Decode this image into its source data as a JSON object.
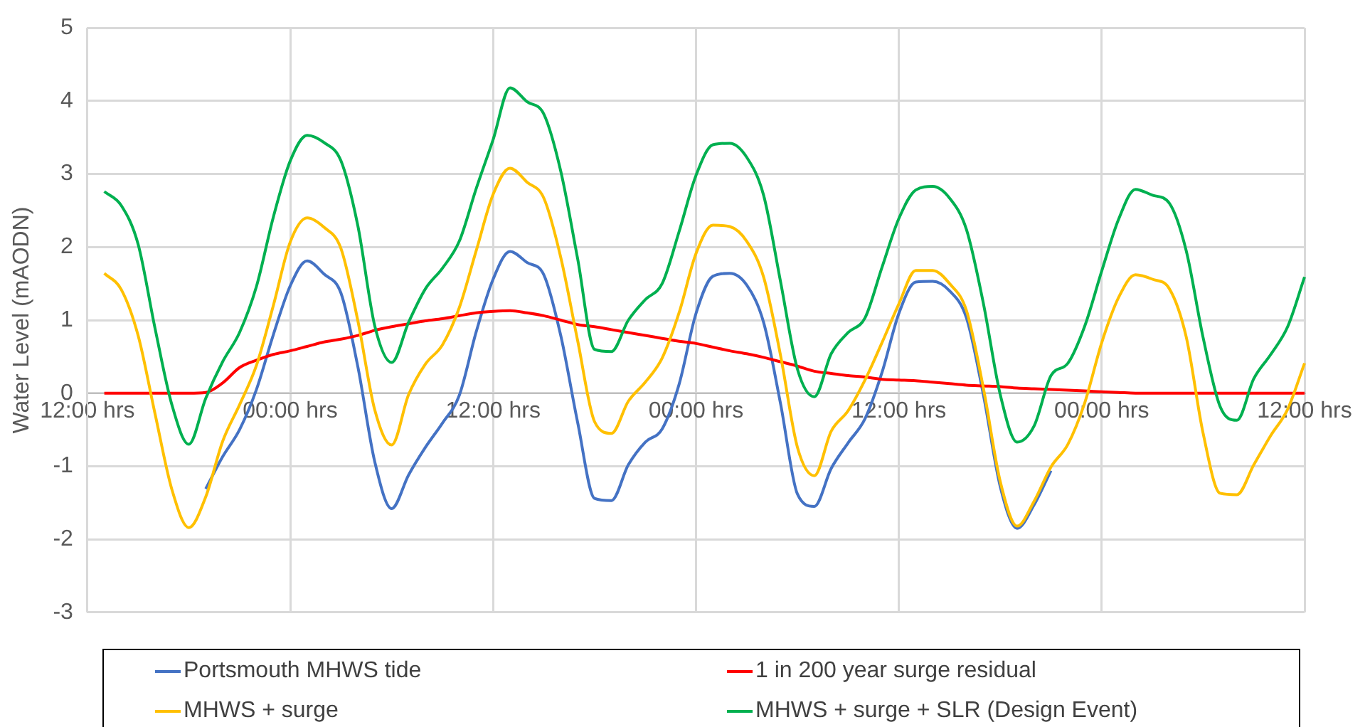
{
  "chart_data": {
    "type": "line",
    "ylabel": "Water Level (mAODN)",
    "categories": [
      "12:00 hrs",
      null,
      null,
      null,
      null,
      null,
      null,
      null,
      null,
      null,
      null,
      null,
      "00:00 hrs",
      null,
      null,
      null,
      null,
      null,
      null,
      null,
      null,
      null,
      null,
      null,
      "12:00 hrs",
      null,
      null,
      null,
      null,
      null,
      null,
      null,
      null,
      null,
      null,
      null,
      "00:00 hrs",
      null,
      null,
      null,
      null,
      null,
      null,
      null,
      null,
      null,
      null,
      null,
      "12:00 hrs",
      null,
      null,
      null,
      null,
      null,
      null,
      null,
      null,
      null,
      null,
      null,
      "00:00 hrs",
      null,
      null,
      null,
      null,
      null,
      null,
      null,
      null,
      null,
      null,
      null,
      "12:00 hrs"
    ],
    "ylim": [
      -3,
      5
    ],
    "yticks": [
      -3,
      -2,
      -1,
      0,
      1,
      2,
      3,
      4,
      5
    ],
    "grid": true,
    "legend": "bottom",
    "marker": "none",
    "line_style": "solid",
    "series": [
      {
        "name": "Portsmouth MHWS tide",
        "color": "#4472c4",
        "values": [
          null,
          null,
          null,
          null,
          null,
          null,
          null,
          -1.31,
          -0.87,
          -0.5,
          0.05,
          0.8,
          1.47,
          1.81,
          1.63,
          1.37,
          0.36,
          -0.94,
          -1.58,
          -1.12,
          -0.74,
          -0.41,
          -0.03,
          0.84,
          1.56,
          1.94,
          1.79,
          1.62,
          0.79,
          -0.4,
          -1.44,
          -1.47,
          -0.98,
          -0.67,
          -0.49,
          0.12,
          1.09,
          1.6,
          1.64,
          1.48,
          0.97,
          -0.14,
          -1.38,
          -1.55,
          -1.03,
          -0.68,
          -0.35,
          0.28,
          1.09,
          1.52,
          1.53,
          1.4,
          1.03,
          -0.02,
          -1.28,
          -1.85,
          -1.53,
          -1.06,
          null,
          null,
          null,
          null,
          null,
          null,
          null,
          null,
          null,
          null,
          null,
          null,
          null,
          null,
          null
        ]
      },
      {
        "name": "1 in 200 year surge residual",
        "color": "#ff0000",
        "values": [
          null,
          0,
          0,
          0,
          0,
          0,
          0,
          0.01,
          0.14,
          0.35,
          0.45,
          0.53,
          0.58,
          0.64,
          0.7,
          0.74,
          0.79,
          0.86,
          0.91,
          0.95,
          0.99,
          1.02,
          1.06,
          1.1,
          1.12,
          1.13,
          1.1,
          1.06,
          1,
          0.94,
          0.91,
          0.87,
          0.83,
          0.79,
          0.75,
          0.71,
          0.68,
          0.63,
          0.58,
          0.54,
          0.49,
          0.43,
          0.37,
          0.3,
          0.27,
          0.24,
          0.22,
          0.19,
          0.18,
          0.17,
          0.15,
          0.13,
          0.11,
          0.1,
          0.09,
          0.07,
          0.06,
          0.05,
          0.04,
          0.03,
          0.02,
          0.01,
          0,
          0,
          0,
          0,
          0,
          0,
          0,
          0,
          0,
          0,
          0
        ]
      },
      {
        "name": "MHWS + surge",
        "color": "#ffc000",
        "values": [
          null,
          1.64,
          1.42,
          0.79,
          -0.28,
          -1.32,
          -1.84,
          -1.42,
          -0.66,
          -0.16,
          0.38,
          1.2,
          2.07,
          2.4,
          2.27,
          1.98,
          0.99,
          -0.23,
          -0.71,
          -0.02,
          0.4,
          0.66,
          1.17,
          1.95,
          2.72,
          3.08,
          2.89,
          2.67,
          1.86,
          0.72,
          -0.39,
          -0.55,
          -0.11,
          0.15,
          0.48,
          1.1,
          1.91,
          2.3,
          2.28,
          2.08,
          1.59,
          0.52,
          -0.74,
          -1.13,
          -0.52,
          -0.24,
          0.18,
          0.69,
          1.22,
          1.68,
          1.68,
          1.5,
          1.13,
          0.07,
          -1.21,
          -1.82,
          -1.48,
          -1.01,
          -0.7,
          -0.13,
          0.69,
          1.31,
          1.62,
          1.56,
          1.43,
          0.77,
          -0.55,
          -1.37,
          -1.39,
          -0.98,
          -0.58,
          -0.22,
          0.41
        ]
      },
      {
        "name": "MHWS + surge + SLR (Design Event)",
        "color": "#00b050",
        "values": [
          null,
          2.76,
          2.57,
          2.04,
          0.89,
          -0.16,
          -0.7,
          -0.07,
          0.43,
          0.83,
          1.46,
          2.41,
          3.18,
          3.53,
          3.43,
          3.18,
          2.29,
          0.92,
          0.42,
          0.97,
          1.43,
          1.71,
          2.08,
          2.8,
          3.47,
          4.18,
          3.99,
          3.82,
          3.04,
          1.84,
          0.6,
          0.57,
          1,
          1.28,
          1.5,
          2.21,
          2.98,
          3.4,
          3.42,
          3.23,
          2.71,
          1.53,
          0.33,
          -0.05,
          0.54,
          0.83,
          1.03,
          1.72,
          2.39,
          2.78,
          2.83,
          2.67,
          2.24,
          1.23,
          -0.02,
          -0.67,
          -0.45,
          0.24,
          0.41,
          0.92,
          1.67,
          2.38,
          2.79,
          2.71,
          2.6,
          1.95,
          0.76,
          -0.18,
          -0.37,
          0.2,
          0.53,
          0.91,
          1.59
        ]
      }
    ]
  }
}
